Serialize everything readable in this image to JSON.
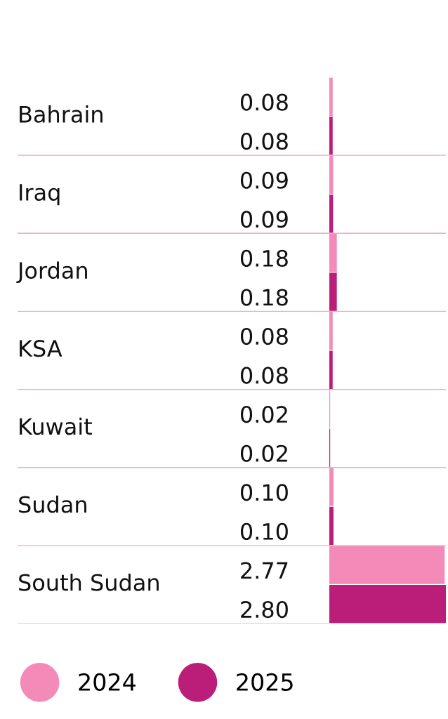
{
  "chart_data": {
    "type": "bar",
    "orientation": "horizontal",
    "categories": [
      "Bahrain",
      "Iraq",
      "Jordan",
      "KSA",
      "Kuwait",
      "Sudan",
      "South Sudan"
    ],
    "series": [
      {
        "name": "2024",
        "color": "#f48ab8",
        "values": [
          0.08,
          0.09,
          0.18,
          0.08,
          0.02,
          0.1,
          2.77
        ],
        "value_labels": [
          "0.08",
          "0.09",
          "0.18",
          "0.08",
          "0.02",
          "0.10",
          "2.77"
        ]
      },
      {
        "name": "2025",
        "color": "#bb1e78",
        "values": [
          0.08,
          0.09,
          0.18,
          0.08,
          0.02,
          0.1,
          2.8
        ],
        "value_labels": [
          "0.08",
          "0.09",
          "0.18",
          "0.08",
          "0.02",
          "0.10",
          "2.80"
        ]
      }
    ],
    "grid": "y",
    "legend": "bottom left"
  }
}
